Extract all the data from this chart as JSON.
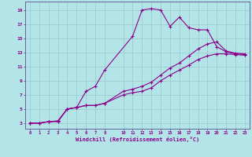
{
  "xlabel": "Windchill (Refroidissement éolien,°C)",
  "background_color": "#b3e5e8",
  "grid_color": "#9ecdd0",
  "line_color": "#8b008b",
  "spine_color": "#666699",
  "xlim": [
    -0.5,
    23.5
  ],
  "ylim": [
    2.2,
    20.2
  ],
  "yticks": [
    3,
    5,
    7,
    9,
    11,
    13,
    15,
    17,
    19
  ],
  "xtick_positions": [
    0,
    1,
    2,
    3,
    4,
    5,
    6,
    7,
    8,
    10,
    11,
    12,
    13,
    14,
    15,
    16,
    17,
    18,
    19,
    20,
    21,
    22,
    23
  ],
  "xtick_labels": [
    "0",
    "1",
    "2",
    "3",
    "4",
    "5",
    "6",
    "7",
    "8",
    "10",
    "11",
    "12",
    "13",
    "14",
    "15",
    "16",
    "17",
    "18",
    "19",
    "20",
    "21",
    "22",
    "23"
  ],
  "series": [
    {
      "x": [
        0,
        1,
        2,
        3,
        4,
        5,
        6,
        7,
        8,
        11,
        12,
        13,
        14,
        15,
        16,
        17,
        18,
        19,
        20,
        21,
        22,
        23
      ],
      "y": [
        3,
        3,
        3.2,
        3.2,
        5.0,
        5.2,
        7.5,
        8.2,
        10.5,
        15.3,
        19.0,
        19.2,
        19.0,
        16.7,
        18.0,
        16.5,
        16.2,
        16.2,
        13.8,
        13.1,
        12.8,
        12.7
      ]
    },
    {
      "x": [
        0,
        1,
        2,
        3,
        4,
        5,
        6,
        7,
        8,
        10,
        11,
        12,
        13,
        14,
        15,
        16,
        17,
        18,
        19,
        20,
        21,
        22,
        23
      ],
      "y": [
        3,
        3,
        3.2,
        3.3,
        5.0,
        5.2,
        5.5,
        5.5,
        5.8,
        7.5,
        7.8,
        8.2,
        8.8,
        9.8,
        10.8,
        11.5,
        12.5,
        13.5,
        14.2,
        14.5,
        13.2,
        12.9,
        12.8
      ]
    },
    {
      "x": [
        0,
        1,
        2,
        3,
        4,
        5,
        6,
        7,
        8,
        10,
        11,
        12,
        13,
        14,
        15,
        16,
        17,
        18,
        19,
        20,
        21,
        22,
        23
      ],
      "y": [
        3,
        3,
        3.2,
        3.3,
        5.0,
        5.2,
        5.5,
        5.5,
        5.8,
        7.0,
        7.3,
        7.5,
        8.0,
        9.0,
        9.8,
        10.5,
        11.2,
        12.0,
        12.5,
        12.8,
        12.8,
        12.7,
        12.6
      ]
    }
  ]
}
